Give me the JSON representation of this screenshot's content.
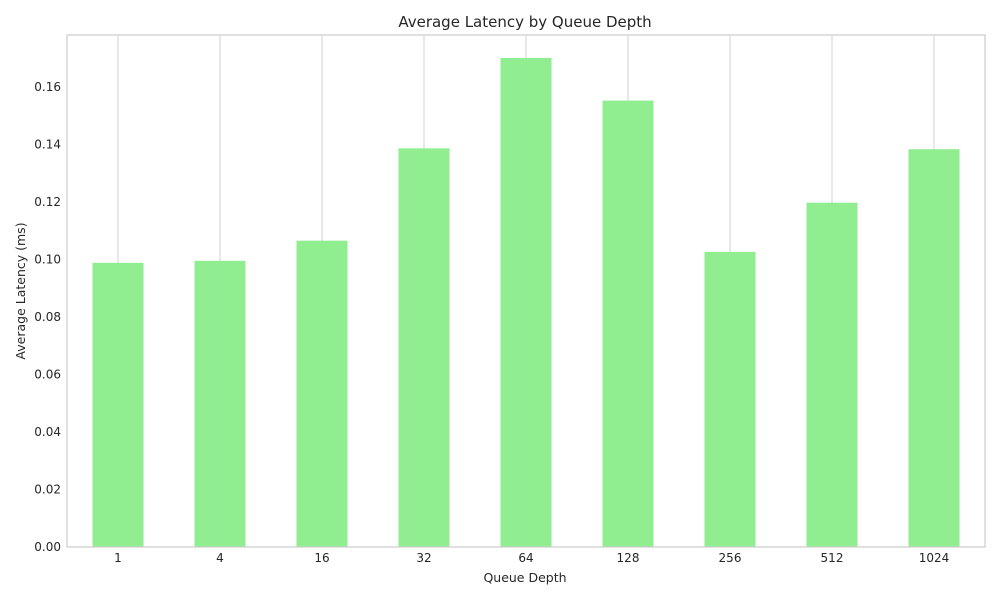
{
  "chart_data": {
    "type": "bar",
    "title": "Average Latency by Queue Depth",
    "xlabel": "Queue Depth",
    "ylabel": "Average Latency (ms)",
    "categories": [
      "1",
      "4",
      "16",
      "32",
      "64",
      "128",
      "256",
      "512",
      "1024"
    ],
    "values": [
      0.0988,
      0.0995,
      0.1065,
      0.1386,
      0.17,
      0.1552,
      0.1026,
      0.1197,
      0.1383
    ],
    "ylim": [
      0,
      0.178
    ],
    "yticks": [
      0.0,
      0.02,
      0.04,
      0.06,
      0.08,
      0.1,
      0.12,
      0.14,
      0.16
    ],
    "ytick_labels": [
      "0.00",
      "0.02",
      "0.04",
      "0.06",
      "0.08",
      "0.10",
      "0.12",
      "0.14",
      "0.16"
    ],
    "grid": {
      "x": true,
      "y": false
    },
    "bar_color": "#90ee90",
    "grid_color": "#cccccc",
    "legend": "none"
  }
}
